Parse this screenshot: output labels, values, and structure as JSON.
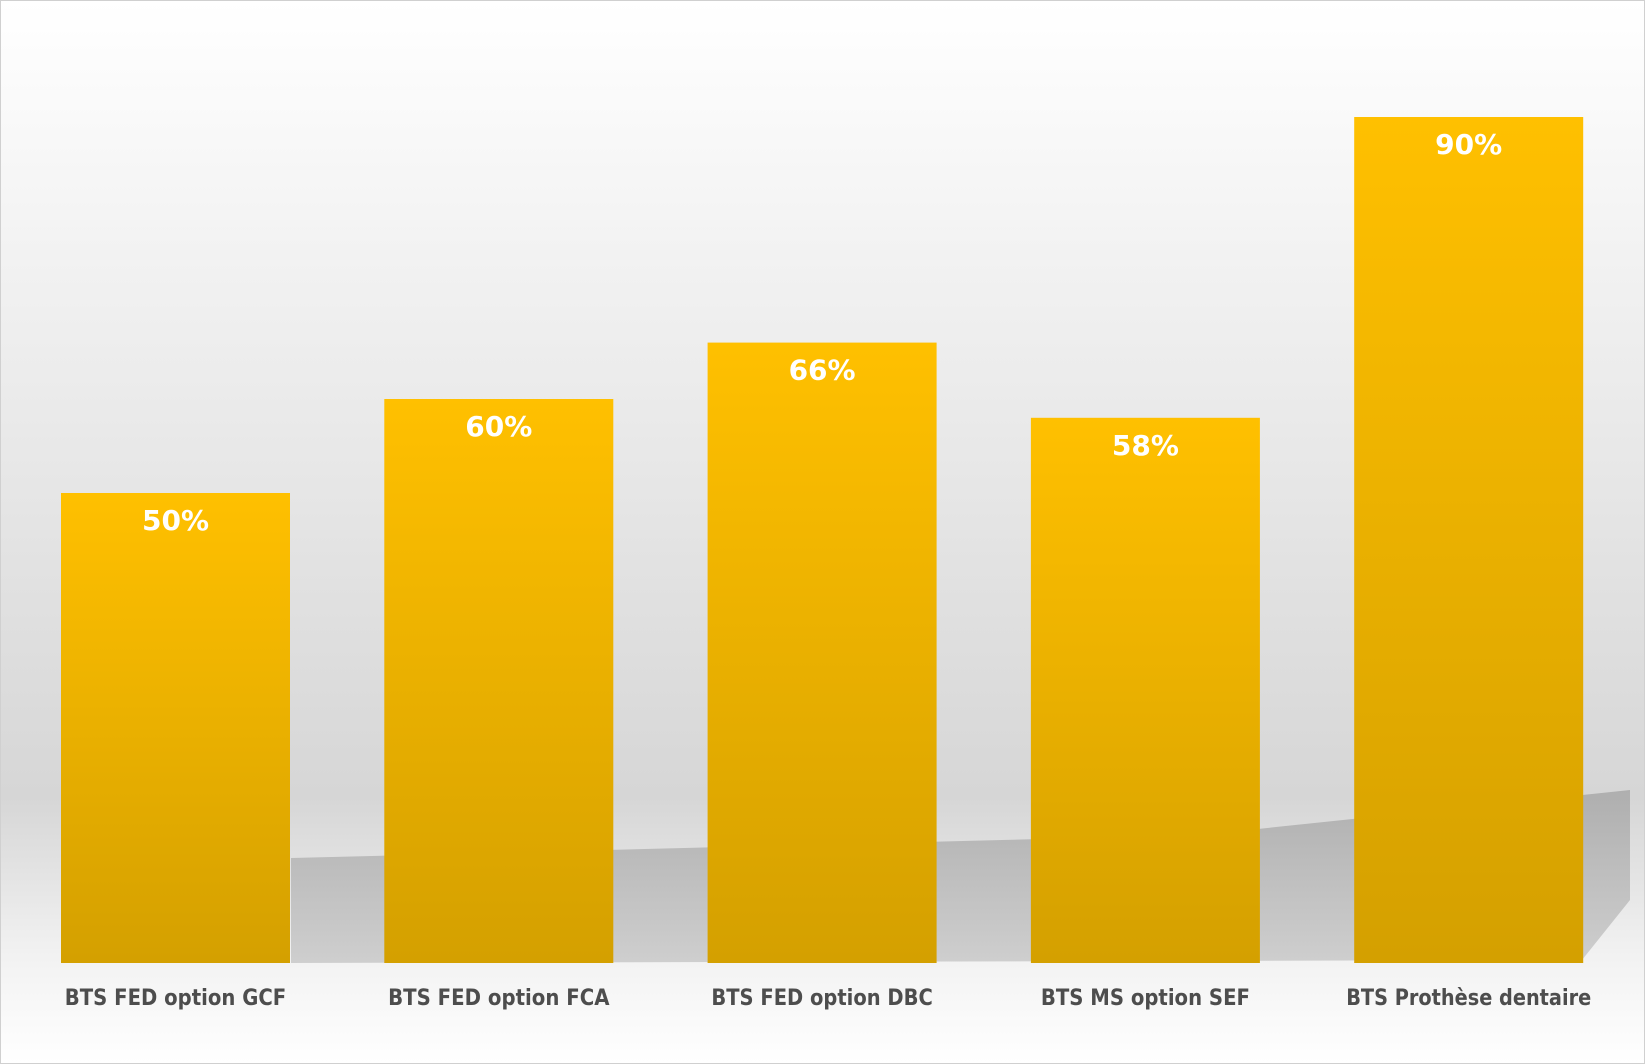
{
  "chart_data": {
    "type": "bar",
    "title": "",
    "xlabel": "",
    "ylabel": "",
    "ylim": [
      0,
      100
    ],
    "grid": false,
    "legend": "none",
    "categories": [
      "BTS FED option GCF",
      "BTS FED option FCA",
      "BTS FED option DBC",
      "BTS MS option SEF",
      "BTS Prothèse dentaire"
    ],
    "values": [
      50,
      60,
      66,
      58,
      90
    ],
    "value_labels": [
      "50%",
      "60%",
      "66%",
      "58%",
      "90%"
    ],
    "colors": {
      "bar_top": "#ffc000",
      "bar_bottom": "#d4a000",
      "label": "#4d4d4d",
      "value_label": "#ffffff"
    }
  }
}
